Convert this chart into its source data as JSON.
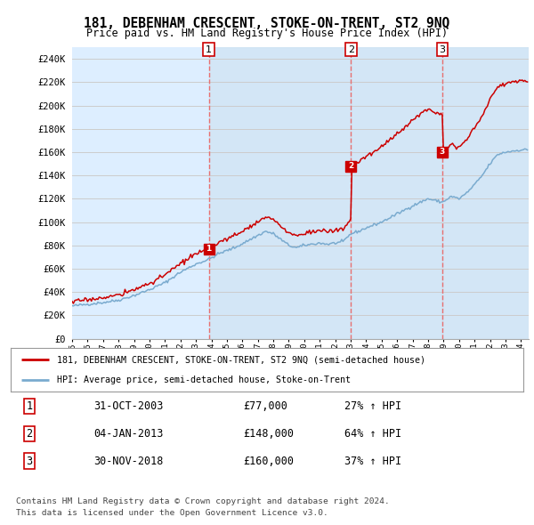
{
  "title": "181, DEBENHAM CRESCENT, STOKE-ON-TRENT, ST2 9NQ",
  "subtitle": "Price paid vs. HM Land Registry's House Price Index (HPI)",
  "ylabel_values": [
    "£0",
    "£20K",
    "£40K",
    "£60K",
    "£80K",
    "£100K",
    "£120K",
    "£140K",
    "£160K",
    "£180K",
    "£200K",
    "£220K",
    "£240K"
  ],
  "yticks": [
    0,
    20000,
    40000,
    60000,
    80000,
    100000,
    120000,
    140000,
    160000,
    180000,
    200000,
    220000,
    240000
  ],
  "ylim": [
    0,
    250000
  ],
  "sales": [
    {
      "date_num": 2003.83,
      "price": 77000,
      "label": "1"
    },
    {
      "date_num": 2013.01,
      "price": 148000,
      "label": "2"
    },
    {
      "date_num": 2018.92,
      "price": 160000,
      "label": "3"
    }
  ],
  "legend_line1": "181, DEBENHAM CRESCENT, STOKE-ON-TRENT, ST2 9NQ (semi-detached house)",
  "legend_line2": "HPI: Average price, semi-detached house, Stoke-on-Trent",
  "table_rows": [
    {
      "num": "1",
      "date": "31-OCT-2003",
      "price": "£77,000",
      "change": "27% ↑ HPI"
    },
    {
      "num": "2",
      "date": "04-JAN-2013",
      "price": "£148,000",
      "change": "64% ↑ HPI"
    },
    {
      "num": "3",
      "date": "30-NOV-2018",
      "price": "£160,000",
      "change": "37% ↑ HPI"
    }
  ],
  "footer1": "Contains HM Land Registry data © Crown copyright and database right 2024.",
  "footer2": "This data is licensed under the Open Government Licence v3.0.",
  "red_line_color": "#cc0000",
  "blue_line_color": "#7aabcf",
  "grid_color": "#cccccc",
  "vline_color": "#e87070",
  "background_color": "#ffffff",
  "plot_bg_color": "#ddeeff",
  "shade_color": "#cce0f0"
}
